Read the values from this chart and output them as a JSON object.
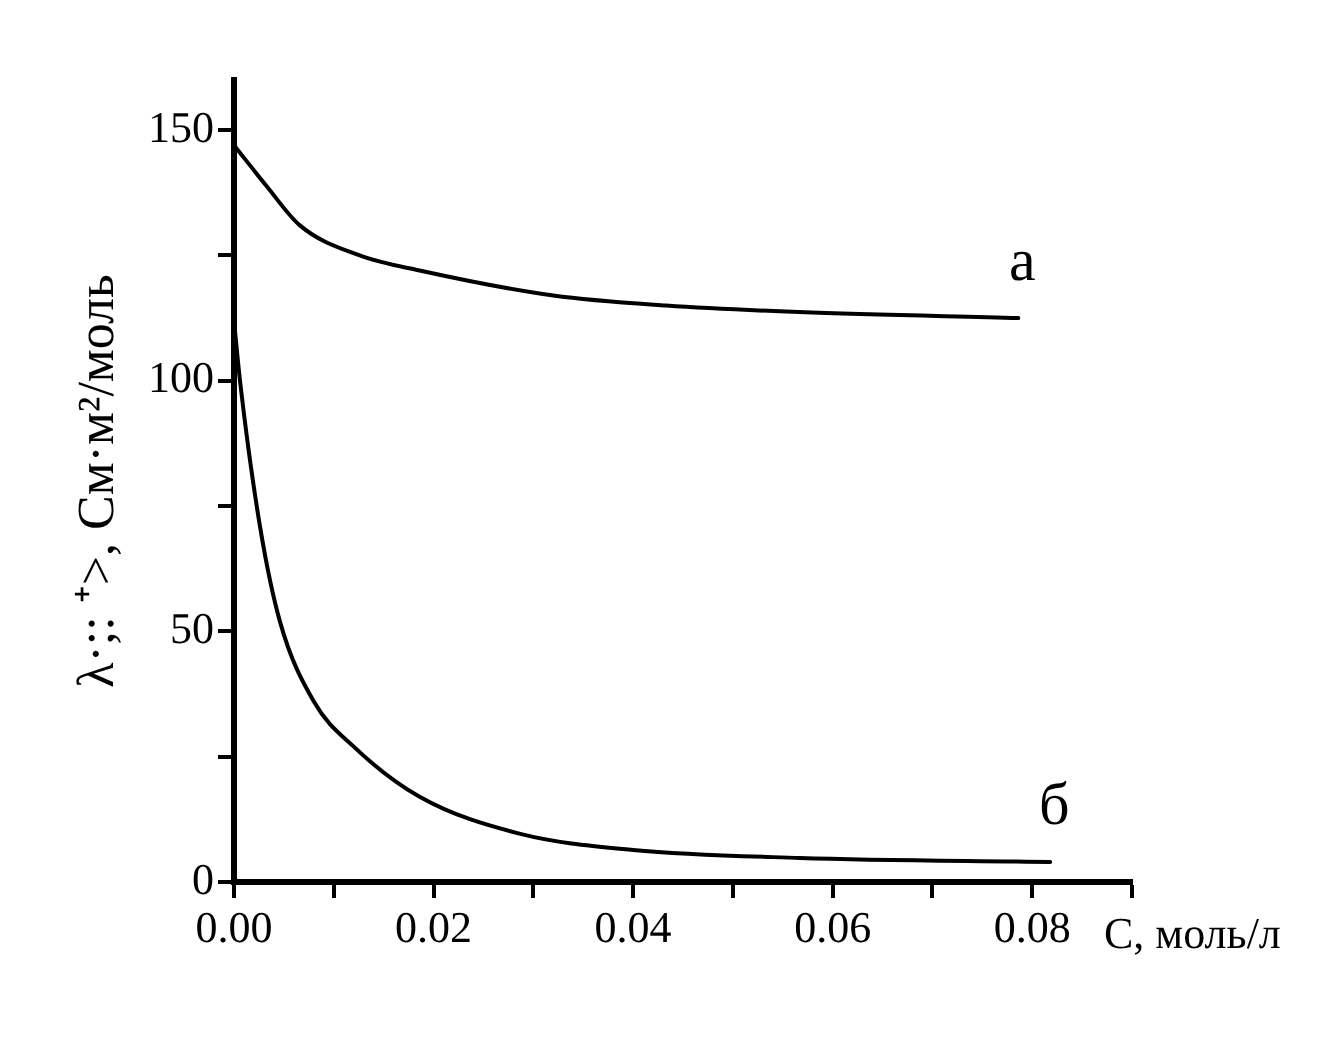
{
  "chart_data": {
    "type": "line",
    "xlabel": "С, моль/л",
    "ylabel": "λ·;: ⁺>, См·м²/моль",
    "xlim": [
      0,
      0.09
    ],
    "ylim": [
      0,
      160
    ],
    "xticks": [
      {
        "value": 0,
        "label": "0.00"
      },
      {
        "value": 0.01,
        "label": null
      },
      {
        "value": 0.02,
        "label": "0.02"
      },
      {
        "value": 0.03,
        "label": null
      },
      {
        "value": 0.04,
        "label": "0.04"
      },
      {
        "value": 0.05,
        "label": null
      },
      {
        "value": 0.06,
        "label": "0.06"
      },
      {
        "value": 0.07,
        "label": null
      },
      {
        "value": 0.08,
        "label": "0.08"
      },
      {
        "value": 0.09,
        "label": null
      }
    ],
    "yticks": [
      0,
      {
        "value": 25,
        "label": null
      },
      50,
      {
        "value": 75,
        "label": null
      },
      100,
      {
        "value": 125,
        "label": null
      },
      150
    ],
    "grid": false,
    "legend": false,
    "marker": "none",
    "line_style": "solid",
    "series": [
      {
        "name": "а",
        "color": "#000000",
        "x": [
          0,
          0.0032,
          0.0066,
          0.0126,
          0.0186,
          0.032,
          0.0433,
          0.0566,
          0.0786
        ],
        "values": [
          147,
          139,
          131,
          125,
          122,
          117,
          115,
          113.7,
          112.5
        ]
      },
      {
        "name": "б",
        "color": "#000000",
        "x": [
          0,
          0.0006,
          0.0026,
          0.0046,
          0.008,
          0.012,
          0.0186,
          0.0287,
          0.04,
          0.0567,
          0.0818
        ],
        "values": [
          112,
          100,
          71,
          52,
          36,
          27,
          17,
          9.6,
          6.4,
          4.8,
          4
        ]
      }
    ]
  }
}
